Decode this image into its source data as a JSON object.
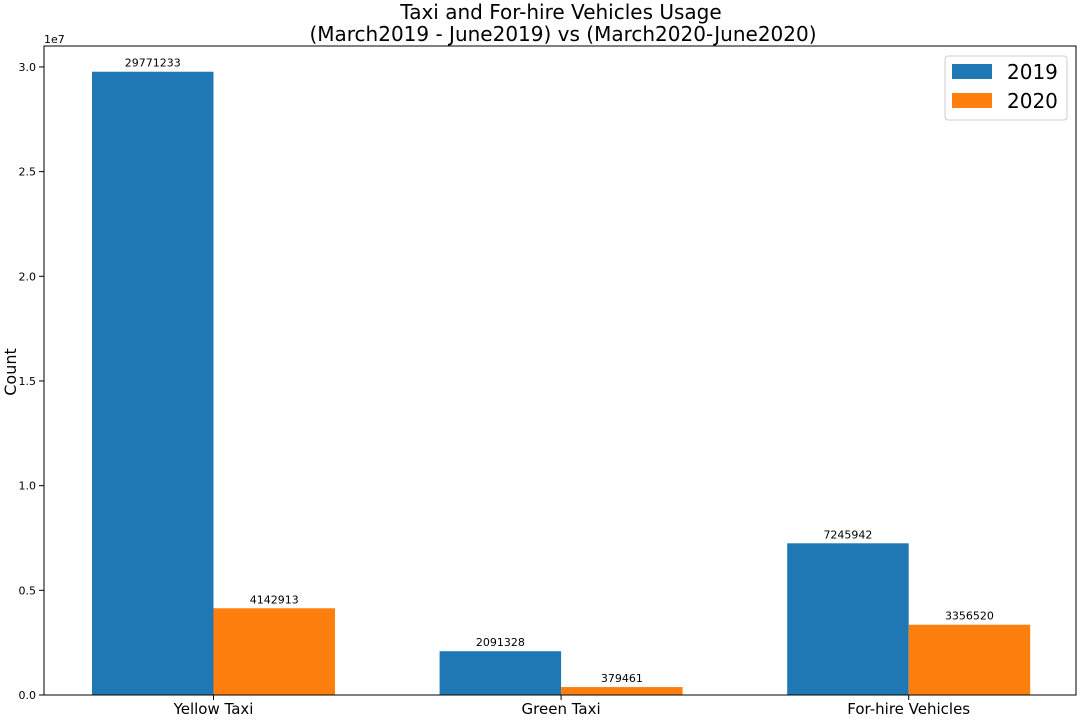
{
  "chart_data": {
    "type": "bar",
    "title": "Taxi and For-hire Vehicles Usage\n(March2019 - June2019) vs (March2020-June2020)",
    "title_lines": [
      "Taxi and For-hire Vehicles Usage",
      "(March2019 - June2019) vs (March2020-June2020)"
    ],
    "xlabel": "",
    "ylabel": "Count",
    "y_offset_label": "1e7",
    "ylim": [
      0,
      31000000
    ],
    "yticks": [
      0,
      5000000,
      10000000,
      15000000,
      20000000,
      25000000,
      30000000
    ],
    "ytick_labels": [
      "0.0",
      "0.5",
      "1.0",
      "1.5",
      "2.0",
      "2.5",
      "3.0"
    ],
    "categories": [
      "Yellow Taxi",
      "Green Taxi",
      "For-hire Vehicles"
    ],
    "series": [
      {
        "name": "2019",
        "color": "#1f77b4",
        "values": [
          29771233,
          2091328,
          7245942
        ]
      },
      {
        "name": "2020",
        "color": "#ff7f0e",
        "values": [
          4142913,
          379461,
          3356520
        ]
      }
    ],
    "grid": false,
    "legend_position": "top-right"
  }
}
